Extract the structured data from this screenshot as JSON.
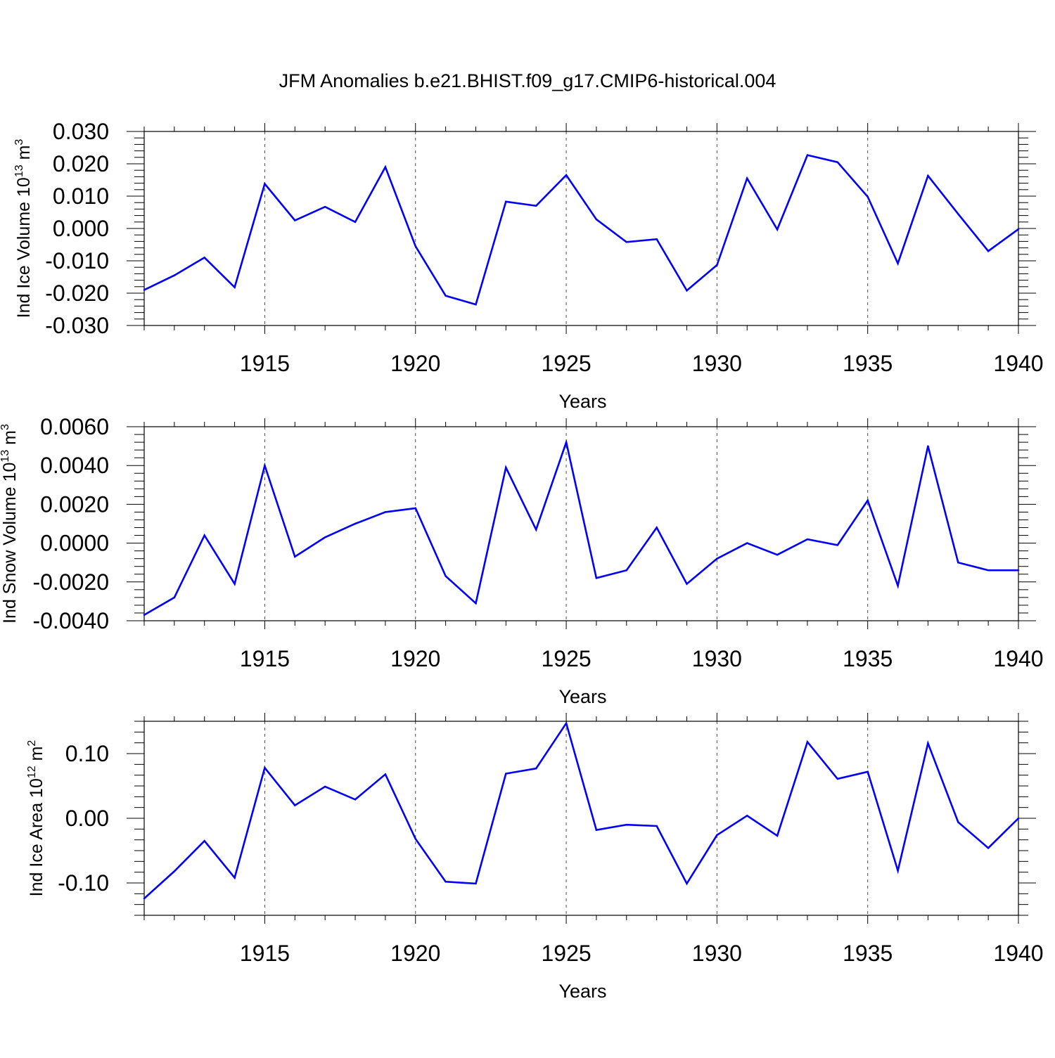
{
  "title": "JFM Anomalies b.e21.BHIST.f09_g17.CMIP6-historical.004",
  "colors": {
    "line": "#0000ff",
    "axis": "#000000",
    "grid": "#000000"
  },
  "chart_data": [
    {
      "type": "line",
      "xlabel": "Years",
      "ylabel": {
        "base": "Ind Ice Volume 10",
        "exp": "13",
        "unit": " m",
        "unit_exp": "3"
      },
      "xlim": [
        1911,
        1940
      ],
      "ylim": [
        -0.03,
        0.03
      ],
      "yticks": [
        -0.03,
        -0.02,
        -0.01,
        0.0,
        0.01,
        0.02,
        0.03
      ],
      "yticklabels": [
        "-0.030",
        "-0.020",
        "-0.010",
        "0.000",
        "0.010",
        "0.020",
        "0.030"
      ],
      "xticks": [
        1915,
        1920,
        1925,
        1930,
        1935,
        1940
      ],
      "xticklabels": [
        "1915",
        "1920",
        "1925",
        "1930",
        "1935",
        "1940"
      ],
      "grid": "vertical dashed at major x ticks",
      "x": [
        1911,
        1912,
        1913,
        1914,
        1915,
        1916,
        1917,
        1918,
        1919,
        1920,
        1921,
        1922,
        1923,
        1924,
        1925,
        1926,
        1927,
        1928,
        1929,
        1930,
        1931,
        1932,
        1933,
        1934,
        1935,
        1936,
        1937,
        1938,
        1939,
        1940
      ],
      "values": [
        -0.019,
        -0.0145,
        -0.009,
        -0.0182,
        0.0138,
        0.0025,
        0.0067,
        0.002,
        0.019,
        -0.0055,
        -0.0208,
        -0.0235,
        0.0083,
        0.007,
        0.0165,
        0.0028,
        -0.0042,
        -0.0033,
        -0.0192,
        -0.0113,
        0.0155,
        -0.0003,
        0.0227,
        0.0205,
        0.0098,
        -0.0108,
        0.0163,
        0.0045,
        -0.007,
        -0.0002
      ]
    },
    {
      "type": "line",
      "xlabel": "Years",
      "ylabel": {
        "base": "Ind Snow Volume 10",
        "exp": "13",
        "unit": " m",
        "unit_exp": "3"
      },
      "xlim": [
        1911,
        1940
      ],
      "ylim": [
        -0.004,
        0.006
      ],
      "yticks": [
        -0.004,
        -0.002,
        0.0,
        0.002,
        0.004,
        0.006
      ],
      "yticklabels": [
        "-0.0040",
        "-0.0020",
        "0.0000",
        "0.0020",
        "0.0040",
        "0.0060"
      ],
      "xticks": [
        1915,
        1920,
        1925,
        1930,
        1935,
        1940
      ],
      "xticklabels": [
        "1915",
        "1920",
        "1925",
        "1930",
        "1935",
        "1940"
      ],
      "grid": "vertical dashed at major x ticks",
      "x": [
        1911,
        1912,
        1913,
        1914,
        1915,
        1916,
        1917,
        1918,
        1919,
        1920,
        1921,
        1922,
        1923,
        1924,
        1925,
        1926,
        1927,
        1928,
        1929,
        1930,
        1931,
        1932,
        1933,
        1934,
        1935,
        1936,
        1937,
        1938,
        1939,
        1940
      ],
      "values": [
        -0.0037,
        -0.0028,
        0.0004,
        -0.0021,
        0.004,
        -0.0007,
        0.0003,
        0.001,
        0.0016,
        0.0018,
        -0.0017,
        -0.0031,
        0.0039,
        0.0007,
        0.0052,
        -0.0018,
        -0.0014,
        0.0008,
        -0.0021,
        -0.0008,
        0.0,
        -0.0006,
        0.0002,
        -0.0001,
        0.0022,
        -0.0022,
        0.005,
        -0.001,
        -0.0014,
        -0.0014
      ]
    },
    {
      "type": "line",
      "xlabel": "Years",
      "ylabel": {
        "base": "Ind Ice Area 10",
        "exp": "12",
        "unit": " m",
        "unit_exp": "2"
      },
      "xlim": [
        1911,
        1940
      ],
      "ylim": [
        -0.15,
        0.15
      ],
      "yticks": [
        -0.1,
        0.0,
        0.1
      ],
      "yticklabels": [
        "-0.10",
        "0.00",
        "0.10"
      ],
      "xticks": [
        1915,
        1920,
        1925,
        1930,
        1935,
        1940
      ],
      "xticklabels": [
        "1915",
        "1920",
        "1925",
        "1930",
        "1935",
        "1940"
      ],
      "grid": "vertical dashed at major x ticks",
      "x": [
        1911,
        1912,
        1913,
        1914,
        1915,
        1916,
        1917,
        1918,
        1919,
        1920,
        1921,
        1922,
        1923,
        1924,
        1925,
        1926,
        1927,
        1928,
        1929,
        1930,
        1931,
        1932,
        1933,
        1934,
        1935,
        1936,
        1937,
        1938,
        1939,
        1940
      ],
      "values": [
        -0.124,
        -0.082,
        -0.035,
        -0.092,
        0.078,
        0.02,
        0.049,
        0.029,
        0.068,
        -0.032,
        -0.098,
        -0.101,
        0.069,
        0.077,
        0.147,
        -0.018,
        -0.01,
        -0.012,
        -0.101,
        -0.026,
        0.004,
        -0.027,
        0.118,
        0.061,
        0.072,
        -0.081,
        0.116,
        -0.006,
        -0.046,
        0.0
      ]
    }
  ]
}
